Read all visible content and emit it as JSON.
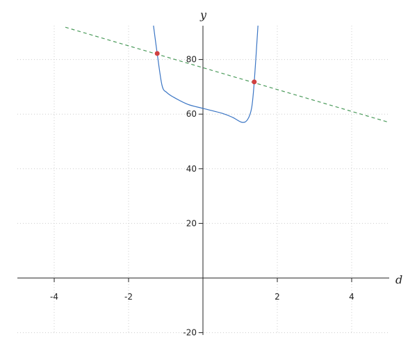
{
  "chart_data": {
    "type": "line",
    "xlabel": "d",
    "ylabel": "y",
    "xlim": [
      -5,
      5
    ],
    "ylim": [
      -20,
      92
    ],
    "xticks": [
      -4,
      -2,
      2,
      4
    ],
    "yticks": [
      -20,
      20,
      40,
      60,
      80
    ],
    "grid": true,
    "series": [
      {
        "style": "solid",
        "color": "#3a75c4",
        "x": [
          -1.33,
          -1.23,
          -1.1,
          -0.97,
          -0.79,
          -0.41,
          0,
          0.52,
          0.8,
          1.05,
          1.2,
          1.31,
          1.38,
          1.48
        ],
        "y": [
          92.4,
          82.2,
          70.5,
          67.9,
          66.2,
          63.6,
          62.1,
          60.3,
          58.8,
          57.0,
          58.0,
          62.3,
          71.8,
          92.4
        ]
      },
      {
        "style": "dashed",
        "color": "#4a9a5a",
        "x": [
          -3.7,
          5
        ],
        "y": [
          91.8,
          57
        ]
      }
    ],
    "points": {
      "color": "#d04040",
      "x": [
        -1.23,
        1.38
      ],
      "y": [
        82.2,
        71.8
      ]
    }
  }
}
